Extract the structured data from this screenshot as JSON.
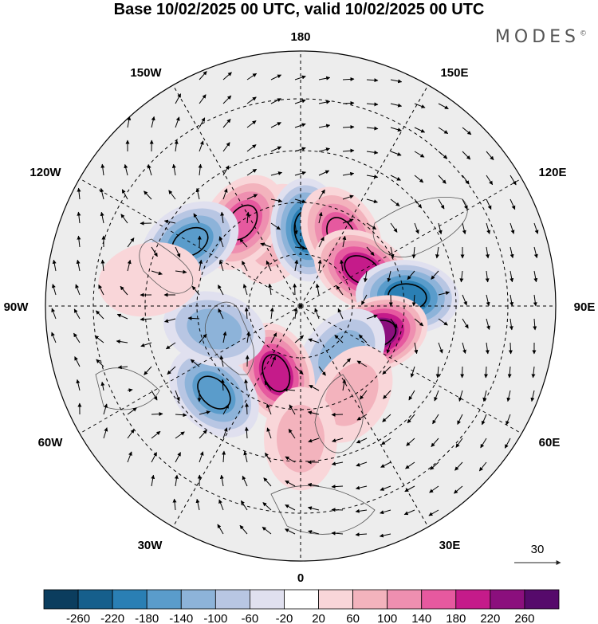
{
  "header": {
    "title": "Base 10/02/2025 00 UTC, valid 10/02/2025 00 UTC",
    "brand": "MODES",
    "brand_mark": "©"
  },
  "map": {
    "projection": "north-polar-stereographic",
    "meridian_labels": {
      "top": "180",
      "top_left": "150W",
      "top_right": "150E",
      "upper_left": "120W",
      "upper_right": "120E",
      "left": "90W",
      "right": "90E",
      "lower_left": "60W",
      "lower_right": "60E",
      "bottom_left": "30W",
      "bottom_right": "30E",
      "bottom": "0"
    },
    "vector_reference": {
      "label": "30"
    }
  },
  "colorbar": {
    "ticks": [
      "-260",
      "-220",
      "-180",
      "-140",
      "-100",
      "-60",
      "-20",
      "20",
      "60",
      "100",
      "140",
      "180",
      "220",
      "260"
    ],
    "colors": [
      "#0b3d5e",
      "#165f8c",
      "#2a7fb4",
      "#5a9ccb",
      "#8db3d9",
      "#b8c6e3",
      "#e0e0ef",
      "#ffffff",
      "#f9d6d9",
      "#f3b3bd",
      "#ee8fb0",
      "#e6599f",
      "#c51b8a",
      "#8b0f7d",
      "#560a6b"
    ]
  },
  "anomalies": [
    {
      "lon": -160,
      "lat": 60,
      "value": 80
    },
    {
      "lon": -145,
      "lat": 50,
      "value": 140
    },
    {
      "lon": 175,
      "lat": 60,
      "value": -180
    },
    {
      "lon": 150,
      "lat": 58,
      "value": 160
    },
    {
      "lon": 120,
      "lat": 62,
      "value": 180
    },
    {
      "lon": 95,
      "lat": 48,
      "value": -200
    },
    {
      "lon": 70,
      "lat": 58,
      "value": 230
    },
    {
      "lon": 40,
      "lat": 65,
      "value": -110
    },
    {
      "lon": 30,
      "lat": 50,
      "value": 60
    },
    {
      "lon": -20,
      "lat": 62,
      "value": 180
    },
    {
      "lon": -45,
      "lat": 42,
      "value": -150
    },
    {
      "lon": -75,
      "lat": 55,
      "value": -110
    },
    {
      "lon": -120,
      "lat": 40,
      "value": -140
    },
    {
      "lon": -100,
      "lat": 30,
      "value": 40
    },
    {
      "lon": 0,
      "lat": 38,
      "value": 70
    }
  ]
}
